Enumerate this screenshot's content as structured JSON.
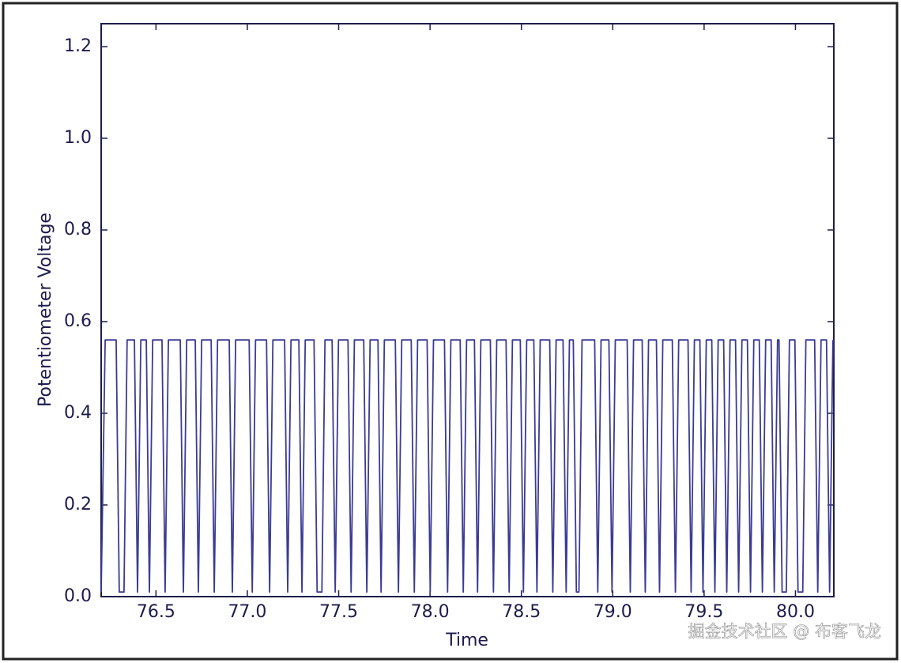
{
  "chart_data": {
    "type": "line",
    "xlabel": "Time",
    "ylabel": "Potentiometer Voltage",
    "watermark": "掘金技术社区 @ 布客飞龙",
    "color": "#3b3b94",
    "xlim": [
      76.2,
      80.21
    ],
    "ylim": [
      0,
      1.25
    ],
    "xticks": [
      76.5,
      {
        "value": 77,
        "label": "77.0"
      },
      77.5,
      {
        "value": 78,
        "label": "78.0"
      },
      78.5,
      {
        "value": 79,
        "label": "79.0"
      },
      79.5,
      {
        "value": 80,
        "label": "80.0"
      }
    ],
    "yticks": [
      {
        "value": 0,
        "label": "0.0"
      },
      0.2,
      0.4,
      0.6,
      0.8,
      {
        "value": 1,
        "label": "1.0"
      },
      1.2
    ],
    "x": [
      76.2,
      76.222,
      76.282,
      76.299,
      76.325,
      76.342,
      76.382,
      76.399,
      76.417,
      76.447,
      76.464,
      76.482,
      76.533,
      76.55,
      76.568,
      76.633,
      76.65,
      76.668,
      76.715,
      76.732,
      76.75,
      76.802,
      76.819,
      76.837,
      76.901,
      76.918,
      76.936,
      77.01,
      77.027,
      77.045,
      77.105,
      77.122,
      77.14,
      77.204,
      77.221,
      77.239,
      77.282,
      77.299,
      77.317,
      77.365,
      77.382,
      77.408,
      77.425,
      77.464,
      77.481,
      77.499,
      77.551,
      77.568,
      77.586,
      77.637,
      77.654,
      77.672,
      77.715,
      77.732,
      77.75,
      77.81,
      77.827,
      77.845,
      77.897,
      77.914,
      77.932,
      77.984,
      78.001,
      78.019,
      78.079,
      78.096,
      78.114,
      78.165,
      78.182,
      78.2,
      78.243,
      78.26,
      78.278,
      78.33,
      78.347,
      78.365,
      78.416,
      78.433,
      78.451,
      78.494,
      78.511,
      78.529,
      78.568,
      78.585,
      78.603,
      78.655,
      78.672,
      78.69,
      78.728,
      78.745,
      78.763,
      78.784,
      78.801,
      78.815,
      78.832,
      78.901,
      78.918,
      78.936,
      78.979,
      78.996,
      79.014,
      79.079,
      79.096,
      79.114,
      79.161,
      79.178,
      79.196,
      79.239,
      79.256,
      79.274,
      79.326,
      79.343,
      79.361,
      79.412,
      79.429,
      79.447,
      79.477,
      79.494,
      79.512,
      79.542,
      79.559,
      79.577,
      79.607,
      79.624,
      79.642,
      79.672,
      79.689,
      79.707,
      79.737,
      79.754,
      79.772,
      79.802,
      79.819,
      79.837,
      79.867,
      79.884,
      79.902,
      79.91,
      79.927,
      79.95,
      79.967,
      79.997,
      80.014,
      80.04,
      80.057,
      80.105,
      80.122,
      80.14,
      80.17,
      80.187,
      80.205
    ],
    "values": [
      0.01,
      0.56,
      0.56,
      0.01,
      0.01,
      0.56,
      0.56,
      0.01,
      0.56,
      0.56,
      0.01,
      0.56,
      0.56,
      0.01,
      0.56,
      0.56,
      0.01,
      0.56,
      0.56,
      0.01,
      0.56,
      0.56,
      0.01,
      0.56,
      0.56,
      0.01,
      0.56,
      0.56,
      0.01,
      0.56,
      0.56,
      0.01,
      0.56,
      0.56,
      0.01,
      0.56,
      0.56,
      0.01,
      0.56,
      0.56,
      0.01,
      0.01,
      0.56,
      0.56,
      0.01,
      0.56,
      0.56,
      0.01,
      0.56,
      0.56,
      0.01,
      0.56,
      0.56,
      0.01,
      0.56,
      0.56,
      0.01,
      0.56,
      0.56,
      0.01,
      0.56,
      0.56,
      0.01,
      0.56,
      0.56,
      0.01,
      0.56,
      0.56,
      0.01,
      0.56,
      0.56,
      0.01,
      0.56,
      0.56,
      0.01,
      0.56,
      0.56,
      0.01,
      0.56,
      0.56,
      0.01,
      0.56,
      0.56,
      0.01,
      0.56,
      0.56,
      0.01,
      0.56,
      0.56,
      0.01,
      0.56,
      0.56,
      0.01,
      0.01,
      0.56,
      0.56,
      0.01,
      0.56,
      0.56,
      0.01,
      0.56,
      0.56,
      0.01,
      0.56,
      0.56,
      0.01,
      0.56,
      0.56,
      0.01,
      0.56,
      0.56,
      0.01,
      0.56,
      0.56,
      0.01,
      0.56,
      0.56,
      0.01,
      0.56,
      0.56,
      0.01,
      0.56,
      0.56,
      0.01,
      0.56,
      0.56,
      0.01,
      0.56,
      0.56,
      0.01,
      0.56,
      0.56,
      0.01,
      0.56,
      0.56,
      0.01,
      0.56,
      0.56,
      0.01,
      0.01,
      0.56,
      0.56,
      0.01,
      0.01,
      0.56,
      0.56,
      0.01,
      0.56,
      0.56,
      0.01,
      0.56
    ]
  }
}
